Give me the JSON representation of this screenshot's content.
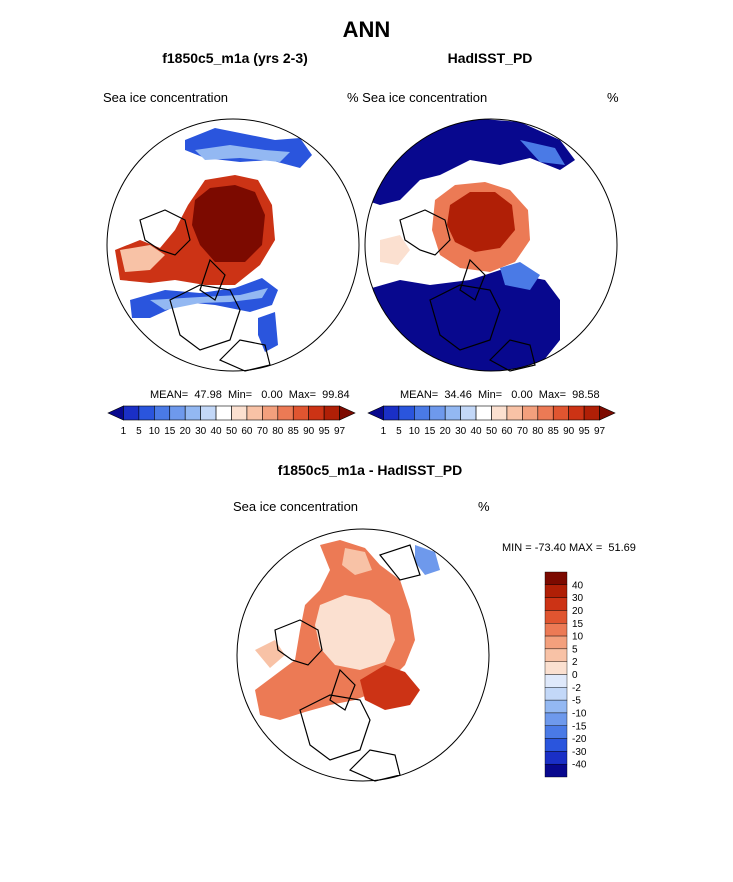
{
  "figure": {
    "title": "ANN",
    "panel_left": {
      "title": "f1850c5_m1a (yrs 2-3)",
      "label": "Sea ice concentration",
      "unit": "",
      "stats": "MEAN=  47.98  Min=   0.00  Max=  99.84"
    },
    "panel_right": {
      "title": "HadISST_PD",
      "label": "% Sea ice concentration",
      "unit": "%",
      "stats": "MEAN=  34.46  Min=   0.00  Max=  98.58"
    },
    "panel_diff": {
      "title": "f1850c5_m1a - HadISST_PD",
      "label": "Sea ice concentration",
      "unit": "%",
      "stats": "MIN = -73.40 MAX =  51.69"
    }
  },
  "colorbar_top": {
    "ticks": [
      "1",
      "5",
      "10",
      "15",
      "20",
      "30",
      "40",
      "50",
      "60",
      "70",
      "80",
      "85",
      "90",
      "95",
      "97"
    ],
    "colors": [
      "#08088e",
      "#1a2fc6",
      "#2a55dd",
      "#4a7ae6",
      "#6e99ec",
      "#93b8f2",
      "#c3d8f8",
      "#ffffff",
      "#fbe0d0",
      "#f8c2a6",
      "#f3a07d",
      "#ec7a55",
      "#e05530",
      "#cc3315",
      "#b01f06",
      "#7c0a00"
    ]
  },
  "colorbar_diff": {
    "ticks": [
      "40",
      "30",
      "20",
      "15",
      "10",
      "5",
      "2",
      "0",
      "-2",
      "-5",
      "-10",
      "-15",
      "-20",
      "-30",
      "-40"
    ],
    "colors": [
      "#7c0a00",
      "#b01f06",
      "#cc3315",
      "#e05530",
      "#ec7a55",
      "#f3a07d",
      "#f8c2a6",
      "#fbe0d0",
      "#dfe9fb",
      "#c3d8f8",
      "#93b8f2",
      "#6e99ec",
      "#4a7ae6",
      "#2a55dd",
      "#1a2fc6",
      "#08088e"
    ]
  }
}
